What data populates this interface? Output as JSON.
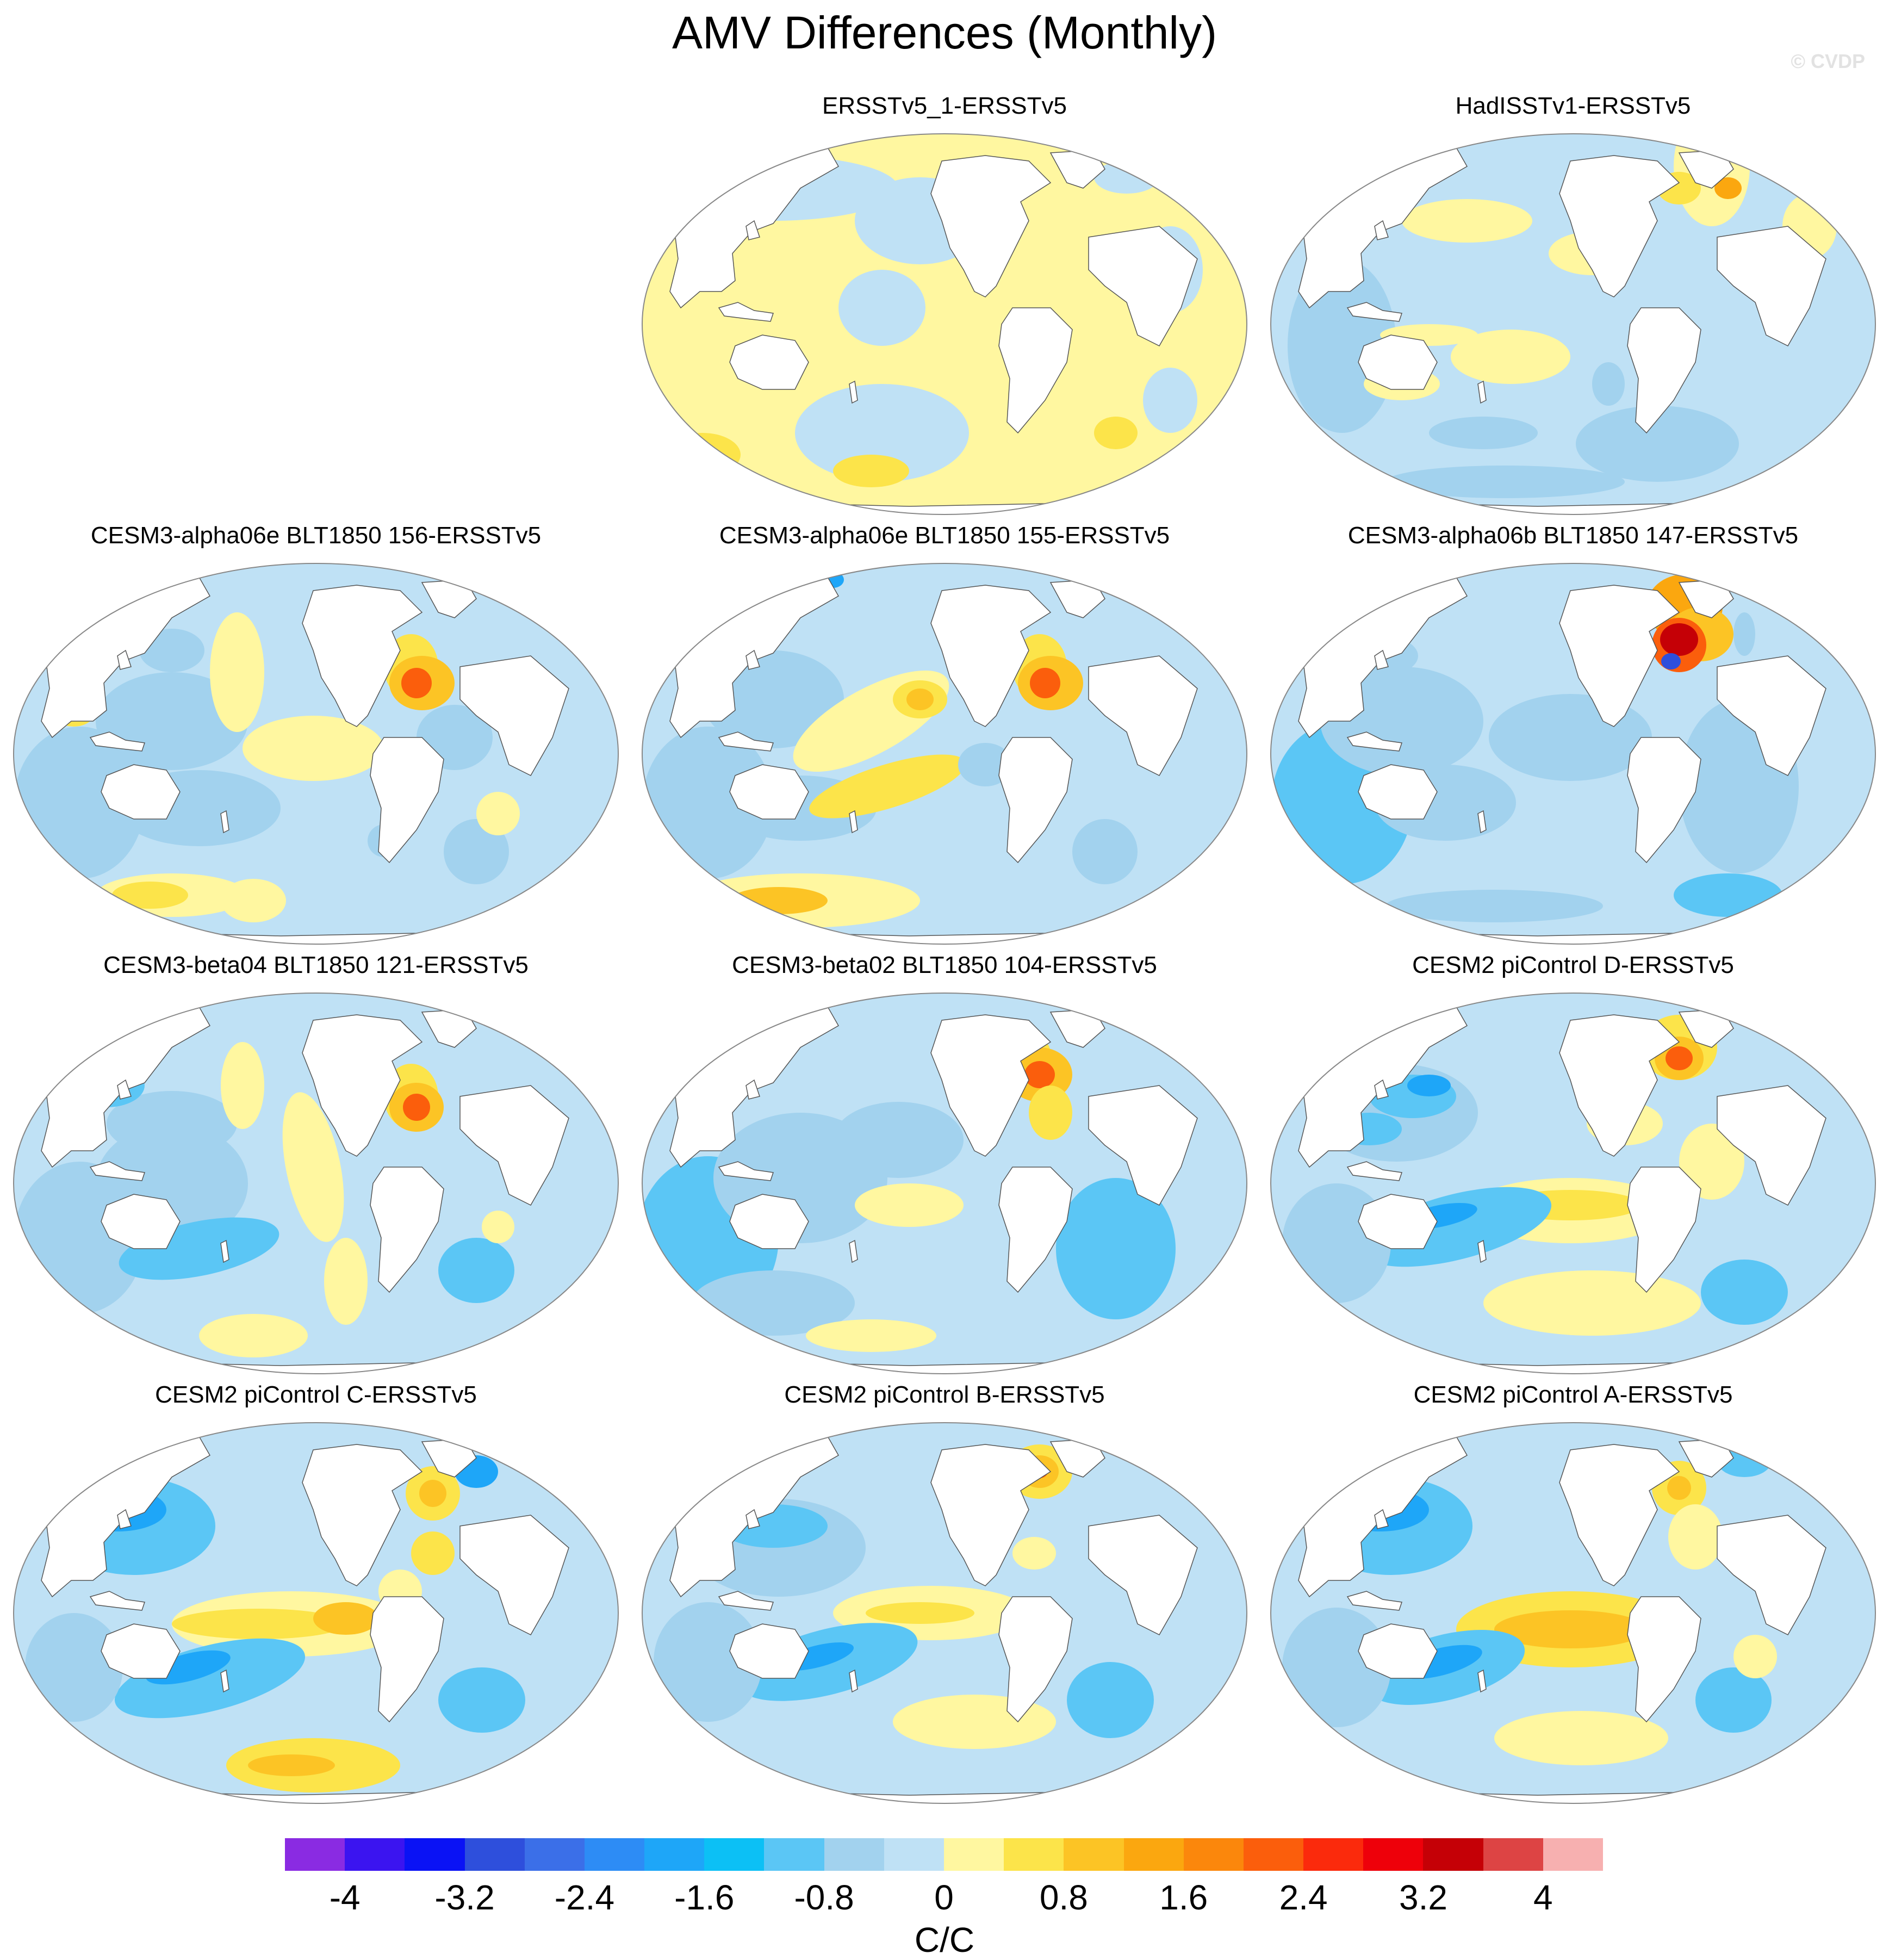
{
  "figure": {
    "title": "AMV Differences (Monthly)",
    "credit": "© CVDP"
  },
  "panels": [
    {
      "name": "ERSSTv5_1-ERSSTv5",
      "pattern": "ersst1"
    },
    {
      "name": "HadISSTv1-ERSSTv5",
      "pattern": "hadisst"
    },
    {
      "name": "CESM3-alpha06e BLT1850 156-ERSSTv5",
      "pattern": "alpha156"
    },
    {
      "name": "CESM3-alpha06e BLT1850 155-ERSSTv5",
      "pattern": "alpha155"
    },
    {
      "name": "CESM3-alpha06b BLT1850 147-ERSSTv5",
      "pattern": "alpha147"
    },
    {
      "name": "CESM3-beta04 BLT1850 121-ERSSTv5",
      "pattern": "beta04"
    },
    {
      "name": "CESM3-beta02 BLT1850 104-ERSSTv5",
      "pattern": "beta02"
    },
    {
      "name": "CESM2 piControl D-ERSSTv5",
      "pattern": "cesm2d"
    },
    {
      "name": "CESM2 piControl C-ERSSTv5",
      "pattern": "cesm2c"
    },
    {
      "name": "CESM2 piControl B-ERSSTv5",
      "pattern": "cesm2b"
    },
    {
      "name": "CESM2 piControl A-ERSSTv5",
      "pattern": "cesm2a"
    }
  ],
  "colorbar": {
    "colors": [
      "#8a2be2",
      "#3b14f0",
      "#0a12f5",
      "#2e4fdc",
      "#3b6fe8",
      "#2d8cf5",
      "#1ea6f8",
      "#0cc0f5",
      "#5bc6f5",
      "#a2d2ee",
      "#bfe1f5",
      "#fff7a0",
      "#fce44a",
      "#fcc425",
      "#fba70f",
      "#fb870c",
      "#fb5e0c",
      "#fb2a0c",
      "#ee000a",
      "#c50006",
      "#dd4444",
      "#f7b0b0"
    ],
    "tick_labels": [
      "-4",
      "-3.2",
      "-2.4",
      "-1.6",
      "-0.8",
      "0",
      "0.8",
      "1.6",
      "2.4",
      "3.2",
      "4"
    ],
    "unit": "C/C"
  }
}
